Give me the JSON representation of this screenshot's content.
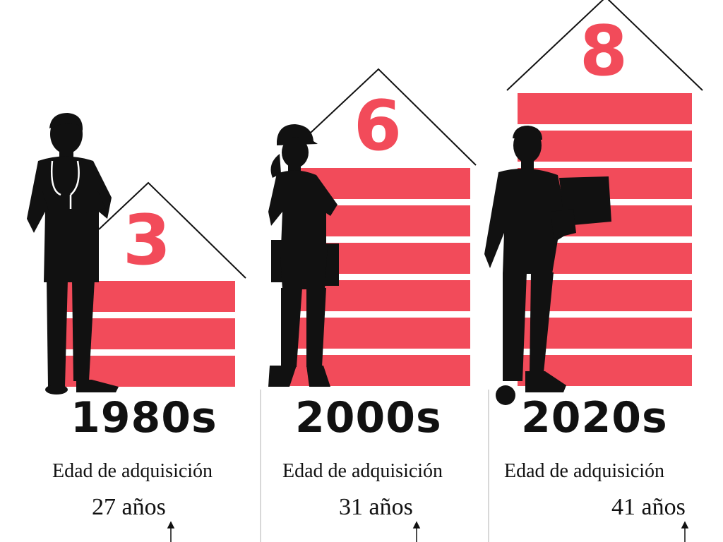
{
  "colors": {
    "accent": "#f24b5a",
    "ink": "#111111",
    "divider": "#cccccc"
  },
  "periods": [
    {
      "decade": "1980s",
      "count": "3",
      "label": "Edad de adquisición",
      "age": "27 años",
      "figure": "doctor-silhouette-icon"
    },
    {
      "decade": "2000s",
      "count": "6",
      "label": "Edad de adquisición",
      "age": "31 años",
      "figure": "construction-worker-silhouette-icon"
    },
    {
      "decade": "2020s",
      "count": "8",
      "label": "Edad de adquisición",
      "age": "41 años",
      "figure": "businessman-laptop-silhouette-icon"
    }
  ]
}
